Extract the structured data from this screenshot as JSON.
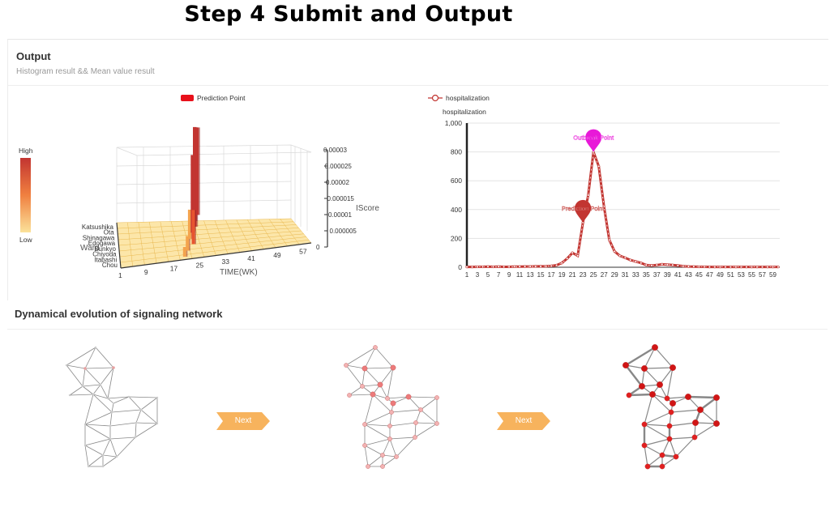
{
  "page": {
    "title": "Step 4  Submit and Output"
  },
  "output": {
    "heading": "Output",
    "subtitle": "Histogram result && Mean value result"
  },
  "network": {
    "heading": "Dynamical evolution of signaling network",
    "next_label": "Next"
  },
  "colors": {
    "bar_high": "#c23531",
    "bar_low": "#fbe29a",
    "line": "#c23531",
    "outbreak_pin": "#e819d8",
    "prediction_pin": "#c23531",
    "next_button": "#f7b35d"
  },
  "chart_data": [
    {
      "type": "bar3d",
      "legend": [
        "Prediction Point"
      ],
      "visual_map": {
        "high_label": "High",
        "low_label": "Low"
      },
      "xlabel": "TIME(WK)",
      "ylabel": "Ward",
      "zlabel": "IScore",
      "x_ticks": [
        "1",
        "9",
        "17",
        "25",
        "33",
        "41",
        "49",
        "57"
      ],
      "y_ticks": [
        "Katsushika",
        "Ota",
        "Shinagawa",
        "Edogawa",
        "Bunkyo",
        "Chiyoda",
        "Itabashi",
        "Chou"
      ],
      "z_ticks": [
        "0",
        "0.000005",
        "0.00001",
        "0.000015",
        "0.00002",
        "0.000025",
        "0.00003"
      ],
      "zlim": [
        0,
        3e-05
      ],
      "bars": [
        {
          "x": 21,
          "ward": "Chou",
          "value": 3e-06
        },
        {
          "x": 22,
          "ward": "Itabashi",
          "value": 4.5e-06
        },
        {
          "x": 23,
          "ward": "Bunkyo",
          "value": 9e-06
        },
        {
          "x": 24,
          "ward": "Edogawa",
          "value": 2.4e-05
        },
        {
          "x": 25,
          "ward": "Shinagawa",
          "value": 2.8e-05
        },
        {
          "x": 25,
          "ward": "Ota",
          "value": 2.9e-05
        },
        {
          "x": 26,
          "ward": "Katsushika",
          "value": 2.7e-05
        },
        {
          "x": 24,
          "ward": "Chiyoda",
          "value": 1.05e-05
        }
      ]
    },
    {
      "type": "line",
      "legend": [
        "hospitalization"
      ],
      "ylabel": "hospitalization",
      "ylim": [
        0,
        1000
      ],
      "y_ticks": [
        "0",
        "200",
        "400",
        "600",
        "800",
        "1,000"
      ],
      "x": [
        1,
        2,
        3,
        4,
        5,
        6,
        7,
        8,
        9,
        10,
        11,
        12,
        13,
        14,
        15,
        16,
        17,
        18,
        19,
        20,
        21,
        22,
        23,
        24,
        25,
        26,
        27,
        28,
        29,
        30,
        31,
        32,
        33,
        34,
        35,
        36,
        37,
        38,
        39,
        40,
        41,
        42,
        43,
        44,
        45,
        46,
        47,
        48,
        49,
        50,
        51,
        52,
        53,
        54,
        55,
        56,
        57,
        58,
        59,
        60
      ],
      "x_ticks": [
        "1",
        "3",
        "5",
        "7",
        "9",
        "11",
        "13",
        "15",
        "17",
        "19",
        "21",
        "23",
        "25",
        "27",
        "29",
        "31",
        "33",
        "35",
        "37",
        "39",
        "41",
        "43",
        "45",
        "47",
        "49",
        "51",
        "53",
        "55",
        "57",
        "59"
      ],
      "series": [
        {
          "name": "hospitalization",
          "values": [
            2,
            2,
            3,
            3,
            4,
            3,
            4,
            3,
            3,
            4,
            4,
            5,
            5,
            6,
            6,
            7,
            9,
            14,
            30,
            60,
            100,
            80,
            310,
            500,
            800,
            700,
            420,
            190,
            110,
            80,
            65,
            50,
            40,
            30,
            15,
            12,
            15,
            20,
            18,
            15,
            12,
            8,
            5,
            4,
            3,
            3,
            2,
            2,
            2,
            2,
            2,
            2,
            2,
            2,
            2,
            2,
            2,
            2,
            2,
            2
          ]
        }
      ],
      "annotations": [
        {
          "label": "Outbreak Point",
          "x": 25,
          "y": 800
        },
        {
          "label": "Prediction Point",
          "x": 23,
          "y": 310
        }
      ]
    }
  ]
}
